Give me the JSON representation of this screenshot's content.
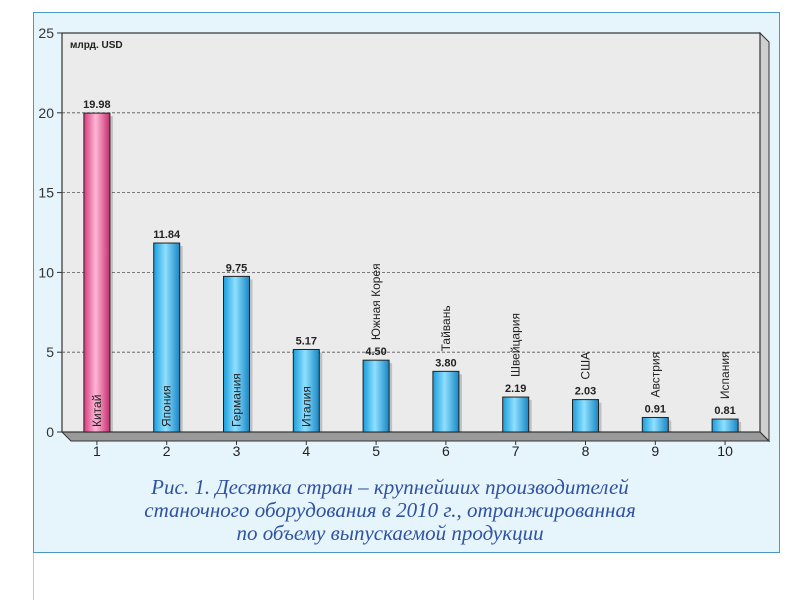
{
  "chart_data": {
    "type": "bar",
    "unit_label": "млрд. USD",
    "categories": [
      "1",
      "2",
      "3",
      "4",
      "5",
      "6",
      "7",
      "8",
      "9",
      "10"
    ],
    "countries": [
      "Китай",
      "Япония",
      "Германия",
      "Италия",
      "Южная Корея",
      "Тайвань",
      "Швейцария",
      "США",
      "Австрия",
      "Испания"
    ],
    "values": [
      19.98,
      11.84,
      9.75,
      5.17,
      4.5,
      3.8,
      2.19,
      2.03,
      0.91,
      0.81
    ],
    "value_labels": [
      "19.98",
      "11.84",
      "9.75",
      "5.17",
      "4.50",
      "3.80",
      "2.19",
      "2.03",
      "0.91",
      "0.81"
    ],
    "y_ticks": [
      "0",
      "5",
      "10",
      "15",
      "20",
      "25"
    ],
    "ylim": [
      0,
      25
    ],
    "grid": true,
    "highlight_color": "#e8528f",
    "bar_color": "#29b6ef"
  },
  "caption": {
    "line1": "Рис. 1. Десятка  стран – крупнейших производителей",
    "line2": "станочного оборудования в 2010 г., отранжированная",
    "line3": "по объему выпускаемой продукции"
  }
}
